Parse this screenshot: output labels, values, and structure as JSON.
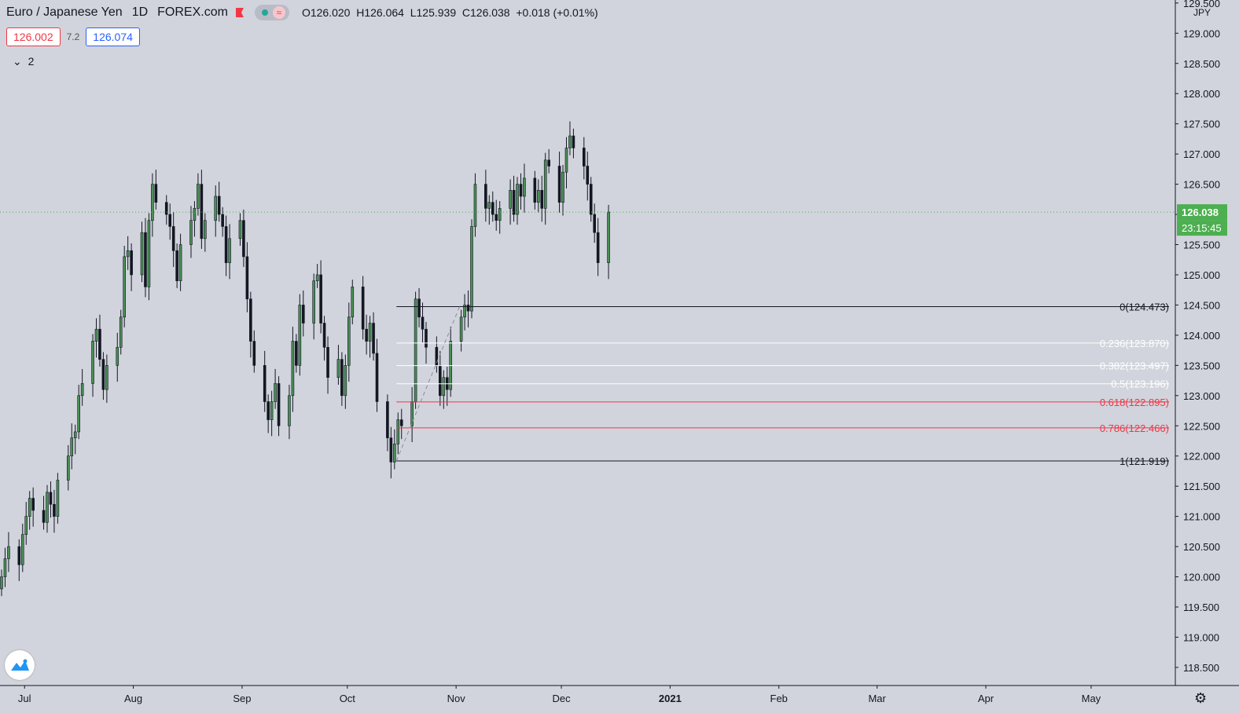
{
  "header": {
    "symbol": "Euro / Japanese Yen",
    "interval": "1D",
    "exchange": "FOREX.com",
    "ohlc": "O126.020  H126.064  L125.939  C126.038  +0.018 (+0.01%)"
  },
  "quote": {
    "sell": "126.002",
    "spread": "7.2",
    "buy": "126.074"
  },
  "collapse": {
    "count": "2"
  },
  "colors": {
    "background": "#d1d4dc",
    "up": "#4a8f56",
    "down": "#131722",
    "last": "#4caf50",
    "fib_red": "#f23645",
    "fib_white": "#ffffff",
    "fib_black": "#131722"
  },
  "chart_data": {
    "type": "candlestick",
    "currency": "JPY",
    "ylim": [
      118.2,
      129.55
    ],
    "yticks": [
      118.5,
      119.0,
      119.5,
      120.0,
      120.5,
      121.0,
      121.5,
      122.0,
      122.5,
      123.0,
      123.5,
      124.0,
      124.5,
      125.0,
      125.5,
      126.0,
      126.5,
      127.0,
      127.5,
      128.0,
      128.5,
      129.0,
      129.5
    ],
    "x_range": [
      "2020-06-24",
      "2021-05-25"
    ],
    "xticks": [
      {
        "date": "2020-07-01",
        "label": "Jul"
      },
      {
        "date": "2020-08-01",
        "label": "Aug"
      },
      {
        "date": "2020-09-01",
        "label": "Sep"
      },
      {
        "date": "2020-10-01",
        "label": "Oct"
      },
      {
        "date": "2020-11-01",
        "label": "Nov"
      },
      {
        "date": "2020-12-01",
        "label": "Dec"
      },
      {
        "date": "2021-01-01",
        "label": "2021"
      },
      {
        "date": "2021-02-01",
        "label": "Feb"
      },
      {
        "date": "2021-03-01",
        "label": "Mar"
      },
      {
        "date": "2021-04-01",
        "label": "Apr"
      },
      {
        "date": "2021-05-01",
        "label": "May"
      }
    ],
    "last_price": {
      "value": 126.038,
      "label": "126.038",
      "countdown": "23:15:45"
    },
    "closes": [
      120.0,
      120.3,
      120.5,
      120.2,
      120.7,
      121.0,
      121.3,
      121.1,
      120.9,
      121.4,
      121.2,
      121.0,
      121.6,
      122.0,
      122.3,
      122.4,
      123.0,
      123.2,
      123.9,
      124.1,
      123.6,
      123.1,
      123.5,
      123.8,
      124.3,
      125.3,
      125.4,
      125.0,
      125.7,
      124.8,
      125.9,
      126.5,
      126.2,
      126.0,
      125.8,
      125.4,
      124.9,
      125.5,
      125.9,
      126.1,
      126.5,
      125.6,
      125.9,
      126.3,
      126.0,
      125.8,
      125.2,
      125.6,
      125.9,
      125.3,
      124.6,
      123.9,
      123.5,
      122.9,
      122.6,
      122.9,
      123.2,
      122.5,
      123.0,
      123.9,
      123.5,
      124.5,
      124.2,
      124.9,
      125.0,
      124.2,
      123.8,
      123.3,
      123.6,
      123.0,
      123.5,
      124.3,
      124.8,
      124.1,
      123.9,
      124.2,
      123.7,
      122.9,
      122.3,
      121.9,
      122.2,
      122.6,
      122.5,
      122.9,
      124.6,
      124.3,
      124.1,
      123.8,
      123.5,
      123.0,
      123.3,
      123.1,
      123.9,
      124.3,
      124.5,
      124.4,
      125.8,
      126.5,
      126.1,
      126.2,
      126.0,
      125.9,
      126.1,
      126.4,
      126.0,
      126.5,
      126.3,
      126.6,
      126.2,
      126.4,
      126.1,
      126.9,
      126.8,
      126.2,
      126.7,
      127.1,
      127.3,
      127.1,
      126.8,
      126.5,
      126.0,
      125.7,
      125.2,
      126.038
    ],
    "fib": {
      "start_date": "2020-10-15",
      "levels": [
        {
          "ratio": 0,
          "price": 124.473,
          "label": "0(124.473)",
          "color": "black"
        },
        {
          "ratio": 0.236,
          "price": 123.87,
          "label": "0.236(123.870)",
          "color": "white"
        },
        {
          "ratio": 0.382,
          "price": 123.497,
          "label": "0.382(123.497)",
          "color": "white"
        },
        {
          "ratio": 0.5,
          "price": 123.196,
          "label": "0.5(123.196)",
          "color": "white"
        },
        {
          "ratio": 0.618,
          "price": 122.895,
          "label": "0.618(122.895)",
          "color": "red"
        },
        {
          "ratio": 0.786,
          "price": 122.466,
          "label": "0.786(122.466)",
          "color": "red"
        },
        {
          "ratio": 1,
          "price": 121.919,
          "label": "1(121.919)",
          "color": "black"
        }
      ],
      "trend_line": {
        "from": {
          "date": "2020-10-15",
          "price": 121.919
        },
        "to": {
          "date": "2020-11-02",
          "price": 124.473
        }
      }
    }
  }
}
